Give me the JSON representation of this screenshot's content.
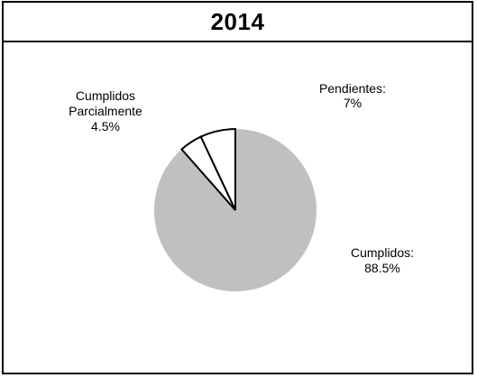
{
  "chart_data": {
    "type": "pie",
    "title": "2014",
    "slices": [
      {
        "name": "Pendientes:",
        "value": 7,
        "value_label": "7%",
        "color": "#ffffff"
      },
      {
        "name": "Cumplidos Parcialmente",
        "value": 4.5,
        "value_label": "4.5%",
        "color": "#ffffff"
      },
      {
        "name": "Cumplidos:",
        "value": 88.5,
        "value_label": "88.5%",
        "color": "#c0c0c0"
      }
    ],
    "start_angle_deg": 0,
    "direction": "counterclockwise",
    "legend": "none"
  }
}
